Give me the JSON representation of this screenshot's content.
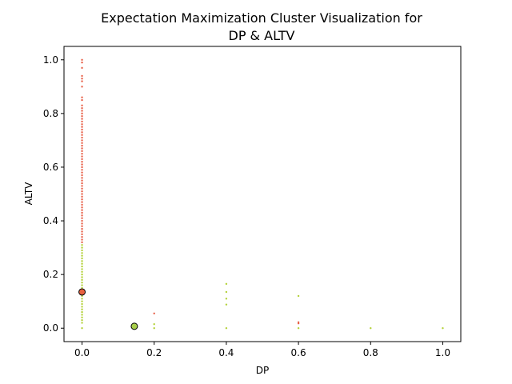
{
  "chart_data": {
    "type": "scatter",
    "title_line1": "Expectation Maximization Cluster Visualization for",
    "title_line2": "DP & ALTV",
    "xlabel": "DP",
    "ylabel": "ALTV",
    "xlim": [
      -0.05,
      1.05
    ],
    "ylim": [
      -0.05,
      1.05
    ],
    "x_ticks": [
      0.0,
      0.2,
      0.4,
      0.6,
      0.8,
      1.0
    ],
    "y_ticks": [
      0.0,
      0.2,
      0.4,
      0.6,
      0.8,
      1.0
    ],
    "x_tick_labels": [
      "0.0",
      "0.2",
      "0.4",
      "0.6",
      "0.8",
      "1.0"
    ],
    "y_tick_labels": [
      "0.0",
      "0.2",
      "0.4",
      "0.6",
      "0.8",
      "1.0"
    ],
    "colors": {
      "cluster_red": "#e8624a",
      "cluster_green": "#b5d23c",
      "centroid_red": "#e8623f",
      "centroid_green": "#a8cf4a"
    },
    "series": [
      {
        "color_key": "cluster_red",
        "points": [
          [
            0,
            1.0
          ],
          [
            0,
            0.99
          ],
          [
            0,
            0.97
          ],
          [
            0,
            0.94
          ],
          [
            0,
            0.93
          ],
          [
            0,
            0.92
          ],
          [
            0,
            0.9
          ],
          [
            0,
            0.86
          ],
          [
            0,
            0.85
          ],
          [
            0,
            0.83
          ],
          [
            0,
            0.82
          ],
          [
            0,
            0.81
          ],
          [
            0,
            0.8
          ],
          [
            0,
            0.79
          ],
          [
            0,
            0.78
          ],
          [
            0,
            0.77
          ],
          [
            0,
            0.76
          ],
          [
            0,
            0.75
          ],
          [
            0,
            0.74
          ],
          [
            0,
            0.73
          ],
          [
            0,
            0.72
          ],
          [
            0,
            0.71
          ],
          [
            0,
            0.7
          ],
          [
            0,
            0.69
          ],
          [
            0,
            0.68
          ],
          [
            0,
            0.67
          ],
          [
            0,
            0.66
          ],
          [
            0,
            0.65
          ],
          [
            0,
            0.64
          ],
          [
            0,
            0.63
          ],
          [
            0,
            0.62
          ],
          [
            0,
            0.61
          ],
          [
            0,
            0.6
          ],
          [
            0,
            0.59
          ],
          [
            0,
            0.58
          ],
          [
            0,
            0.57
          ],
          [
            0,
            0.56
          ],
          [
            0,
            0.55
          ],
          [
            0,
            0.54
          ],
          [
            0,
            0.53
          ],
          [
            0,
            0.52
          ],
          [
            0,
            0.51
          ],
          [
            0,
            0.5
          ],
          [
            0,
            0.49
          ],
          [
            0,
            0.48
          ],
          [
            0,
            0.47
          ],
          [
            0,
            0.46
          ],
          [
            0,
            0.45
          ],
          [
            0,
            0.44
          ],
          [
            0,
            0.43
          ],
          [
            0,
            0.42
          ],
          [
            0,
            0.41
          ],
          [
            0,
            0.4
          ],
          [
            0,
            0.39
          ],
          [
            0,
            0.38
          ],
          [
            0,
            0.37
          ],
          [
            0,
            0.36
          ],
          [
            0,
            0.35
          ],
          [
            0,
            0.34
          ],
          [
            0,
            0.33
          ],
          [
            0,
            0.32
          ],
          [
            0.2,
            0.055
          ],
          [
            0.6,
            0.022
          ],
          [
            0.6,
            0.018
          ]
        ]
      },
      {
        "color_key": "cluster_green",
        "points": [
          [
            0,
            0.31
          ],
          [
            0,
            0.3
          ],
          [
            0,
            0.29
          ],
          [
            0,
            0.28
          ],
          [
            0,
            0.27
          ],
          [
            0,
            0.26
          ],
          [
            0,
            0.25
          ],
          [
            0,
            0.24
          ],
          [
            0,
            0.23
          ],
          [
            0,
            0.22
          ],
          [
            0,
            0.21
          ],
          [
            0,
            0.2
          ],
          [
            0,
            0.19
          ],
          [
            0,
            0.18
          ],
          [
            0,
            0.17
          ],
          [
            0,
            0.16
          ],
          [
            0,
            0.15
          ],
          [
            0,
            0.14
          ],
          [
            0,
            0.12
          ],
          [
            0,
            0.11
          ],
          [
            0,
            0.1
          ],
          [
            0,
            0.09
          ],
          [
            0,
            0.08
          ],
          [
            0,
            0.07
          ],
          [
            0,
            0.06
          ],
          [
            0,
            0.05
          ],
          [
            0,
            0.04
          ],
          [
            0,
            0.03
          ],
          [
            0,
            0.02
          ],
          [
            0,
            0.0
          ],
          [
            0.2,
            0.015
          ],
          [
            0.2,
            0.0
          ],
          [
            0.4,
            0.165
          ],
          [
            0.4,
            0.135
          ],
          [
            0.4,
            0.11
          ],
          [
            0.4,
            0.088
          ],
          [
            0.4,
            0.0
          ],
          [
            0.6,
            0.12
          ],
          [
            0.6,
            0.0
          ],
          [
            0.8,
            0.0
          ],
          [
            1.0,
            0.0
          ]
        ]
      }
    ],
    "centroids": [
      {
        "color_key": "centroid_red",
        "x": 0.0,
        "y": 0.135
      },
      {
        "color_key": "centroid_green",
        "x": 0.145,
        "y": 0.007
      }
    ],
    "grid": false,
    "legend": "none"
  }
}
